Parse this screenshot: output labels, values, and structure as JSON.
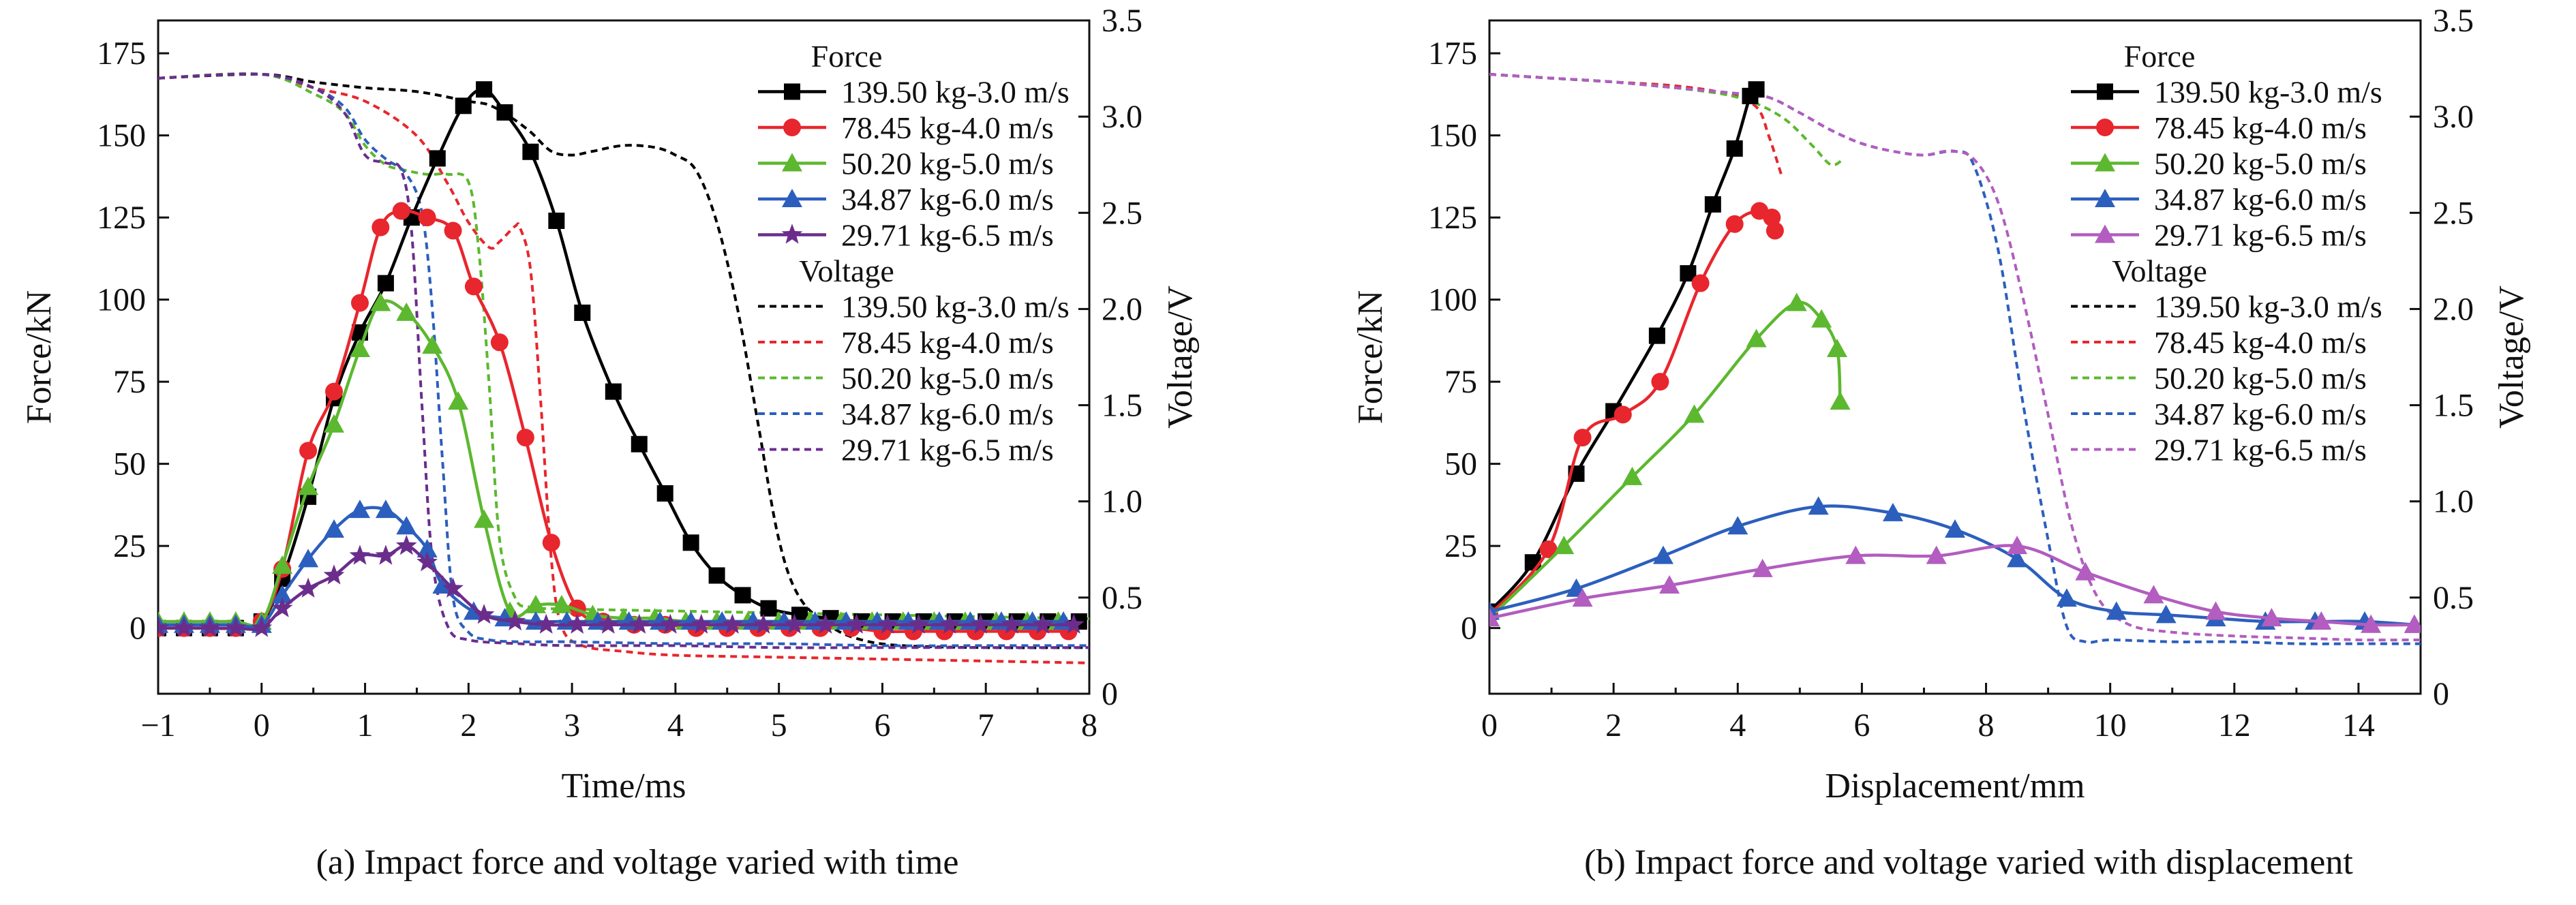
{
  "chart_data": [
    {
      "type": "line",
      "caption": "(a) Impact force and voltage varied with time",
      "xlabel": "Time/ms",
      "ylabel": "Force/kN",
      "y2label": "Voltage/V",
      "xlim": [
        -1,
        8
      ],
      "ylim": [
        -20,
        185
      ],
      "y2lim": [
        0,
        3.5
      ],
      "xticks": [
        -1,
        0,
        1,
        2,
        3,
        4,
        5,
        6,
        7,
        8
      ],
      "yticks": [
        0,
        25,
        50,
        75,
        100,
        125,
        150,
        175
      ],
      "y2ticks": [
        0,
        0.5,
        1.0,
        1.5,
        2.0,
        2.5,
        3.0,
        3.5
      ],
      "legend_force_title": "Force",
      "legend_voltage_title": "Voltage",
      "legend_position": "top-right",
      "force_series": [
        {
          "name": "139.50 kg-3.0 m/s",
          "color": "#000000",
          "marker": "square",
          "x": [
            -1,
            -0.75,
            -0.5,
            -0.25,
            0,
            0.2,
            0.45,
            0.7,
            0.95,
            1.2,
            1.45,
            1.7,
            1.95,
            2.15,
            2.35,
            2.6,
            2.85,
            3.1,
            3.4,
            3.65,
            3.9,
            4.15,
            4.4,
            4.65,
            4.9,
            5.2,
            5.5,
            5.8,
            6.1,
            6.4,
            6.7,
            7.0,
            7.3,
            7.6,
            7.9
          ],
          "y": [
            0,
            0,
            0,
            0,
            2,
            15,
            40,
            70,
            90,
            105,
            125,
            143,
            159,
            164,
            157,
            145,
            124,
            96,
            72,
            56,
            41,
            26,
            16,
            10,
            6,
            4,
            3,
            2,
            2,
            2,
            2,
            2,
            2,
            2,
            2
          ]
        },
        {
          "name": "78.45 kg-4.0 m/s",
          "color": "#e8262d",
          "marker": "circle",
          "x": [
            -1,
            -0.75,
            -0.5,
            -0.25,
            0,
            0.2,
            0.45,
            0.7,
            0.95,
            1.15,
            1.35,
            1.6,
            1.85,
            2.05,
            2.3,
            2.55,
            2.8,
            3.05,
            3.3,
            3.6,
            3.9,
            4.2,
            4.5,
            4.8,
            5.1,
            5.4,
            5.7,
            6.0,
            6.3,
            6.6,
            6.9,
            7.2,
            7.5,
            7.8
          ],
          "y": [
            0,
            0,
            0,
            0,
            2,
            18,
            54,
            72,
            99,
            122,
            127,
            125,
            121,
            104,
            87,
            58,
            26,
            6,
            2,
            1,
            1,
            0,
            0,
            0,
            0,
            0,
            0,
            -1,
            -1,
            -1,
            -1,
            -1,
            -1,
            -1
          ]
        },
        {
          "name": "50.20 kg-5.0 m/s",
          "color": "#5cb82f",
          "marker": "triangle",
          "x": [
            -1,
            -0.75,
            -0.5,
            -0.25,
            0,
            0.2,
            0.45,
            0.7,
            0.95,
            1.15,
            1.4,
            1.65,
            1.9,
            2.15,
            2.4,
            2.65,
            2.9,
            3.2,
            3.5,
            3.8,
            4.1,
            4.4,
            4.7,
            5.0,
            5.3,
            5.6,
            5.9,
            6.2,
            6.5,
            6.8,
            7.1,
            7.4,
            7.7
          ],
          "y": [
            2,
            2,
            2,
            2,
            2,
            19,
            43,
            62,
            85,
            99,
            96,
            86,
            69,
            33,
            5,
            7,
            7,
            4,
            3,
            3,
            2,
            2,
            2,
            2,
            2,
            2,
            2,
            2,
            2,
            2,
            2,
            2,
            2
          ]
        },
        {
          "name": "34.87 kg-6.0 m/s",
          "color": "#2c5fbd",
          "marker": "triangle",
          "x": [
            -1,
            -0.75,
            -0.5,
            -0.25,
            0,
            0.2,
            0.45,
            0.7,
            0.95,
            1.2,
            1.4,
            1.6,
            1.75,
            2.05,
            2.35,
            2.65,
            2.95,
            3.25,
            3.55,
            3.85,
            4.15,
            4.45,
            4.75,
            5.05,
            5.35,
            5.65,
            5.95,
            6.25,
            6.55,
            6.85,
            7.15,
            7.45,
            7.75
          ],
          "y": [
            1,
            1,
            1,
            1,
            1,
            10,
            21,
            30,
            36,
            36,
            31,
            24,
            13,
            5,
            3,
            2,
            2,
            2,
            2,
            2,
            2,
            2,
            2,
            2,
            2,
            2,
            2,
            2,
            2,
            2,
            2,
            2,
            2
          ]
        },
        {
          "name": "29.71 kg-6.5 m/s",
          "color": "#6b2d8c",
          "marker": "star",
          "x": [
            -1,
            -0.75,
            -0.5,
            -0.25,
            0,
            0.2,
            0.45,
            0.7,
            0.95,
            1.2,
            1.4,
            1.6,
            1.85,
            2.15,
            2.45,
            2.75,
            3.05,
            3.35,
            3.65,
            3.95,
            4.25,
            4.55,
            4.85,
            5.15,
            5.45,
            5.75,
            6.05,
            6.35,
            6.65,
            6.95,
            7.25,
            7.55,
            7.85
          ],
          "y": [
            0,
            0,
            0,
            0,
            0,
            6,
            12,
            16,
            22,
            22,
            25,
            20,
            12,
            4,
            2,
            1,
            1,
            1,
            1,
            1,
            1,
            1,
            1,
            1,
            1,
            1,
            1,
            1,
            1,
            1,
            1,
            1,
            1
          ]
        }
      ],
      "voltage_series": [
        {
          "name": "139.50 kg-3.0 m/s",
          "color": "#000000",
          "x": [
            -1,
            0,
            0.5,
            1.0,
            1.5,
            2.0,
            2.2,
            2.4,
            2.6,
            2.8,
            3.0,
            3.2,
            3.5,
            3.8,
            4.0,
            4.2,
            4.4,
            4.6,
            4.8,
            5.0,
            5.2,
            5.5,
            5.8,
            6.2,
            7.0,
            8.0
          ],
          "y": [
            3.2,
            3.22,
            3.18,
            3.15,
            3.13,
            3.08,
            3.06,
            3.0,
            2.92,
            2.82,
            2.8,
            2.82,
            2.85,
            2.84,
            2.8,
            2.72,
            2.45,
            2.0,
            1.4,
            0.8,
            0.5,
            0.35,
            0.28,
            0.25,
            0.24,
            0.24
          ]
        },
        {
          "name": "78.45 kg-4.0 m/s",
          "color": "#e8262d",
          "x": [
            -1,
            0,
            0.5,
            1.0,
            1.5,
            1.8,
            2.0,
            2.2,
            2.3,
            2.45,
            2.5,
            2.6,
            2.7,
            2.8,
            2.9,
            3.1,
            3.5,
            4.0,
            5.0,
            6.0,
            7.0,
            8.0
          ],
          "y": [
            3.2,
            3.22,
            3.15,
            3.08,
            2.9,
            2.65,
            2.45,
            2.32,
            2.35,
            2.43,
            2.42,
            2.2,
            1.5,
            0.7,
            0.35,
            0.25,
            0.22,
            0.2,
            0.19,
            0.18,
            0.17,
            0.16
          ]
        },
        {
          "name": "50.20 kg-5.0 m/s",
          "color": "#5cb82f",
          "x": [
            -1,
            0,
            0.5,
            0.8,
            1.0,
            1.2,
            1.4,
            1.6,
            1.8,
            2.0,
            2.1,
            2.2,
            2.3,
            2.45,
            2.6,
            3.0,
            4.0,
            5.0,
            6.0,
            7.0,
            8.0
          ],
          "y": [
            3.2,
            3.22,
            3.12,
            3.02,
            2.85,
            2.75,
            2.72,
            2.7,
            2.7,
            2.66,
            2.3,
            1.6,
            0.8,
            0.5,
            0.45,
            0.44,
            0.43,
            0.42,
            0.41,
            0.4,
            0.39
          ]
        },
        {
          "name": "34.87 kg-6.0 m/s",
          "color": "#2c5fbd",
          "x": [
            -1,
            0,
            0.5,
            0.8,
            1.0,
            1.2,
            1.4,
            1.55,
            1.65,
            1.75,
            1.85,
            2.0,
            2.2,
            2.5,
            3.0,
            4.0,
            5.0,
            6.0,
            7.0,
            8.0
          ],
          "y": [
            3.2,
            3.22,
            3.15,
            3.05,
            2.88,
            2.78,
            2.7,
            2.5,
            2.0,
            1.2,
            0.5,
            0.32,
            0.28,
            0.27,
            0.27,
            0.26,
            0.26,
            0.25,
            0.25,
            0.25
          ]
        },
        {
          "name": "29.71 kg-6.5 m/s",
          "color": "#6b2d8c",
          "x": [
            -1,
            0,
            0.5,
            0.8,
            1.0,
            1.2,
            1.35,
            1.45,
            1.55,
            1.65,
            1.8,
            2.0,
            2.5,
            3.0,
            4.0,
            5.0,
            6.0,
            7.0,
            8.0
          ],
          "y": [
            3.2,
            3.22,
            3.15,
            3.02,
            2.8,
            2.76,
            2.72,
            2.4,
            1.5,
            0.7,
            0.35,
            0.28,
            0.26,
            0.25,
            0.25,
            0.24,
            0.24,
            0.24,
            0.24
          ]
        }
      ]
    },
    {
      "type": "line",
      "caption": "(b) Impact force and voltage varied with displacement",
      "xlabel": "Displacement/mm",
      "ylabel": "Force/kN",
      "y2label": "Voltage/V",
      "xlim": [
        0,
        15
      ],
      "ylim": [
        -20,
        185
      ],
      "y2lim": [
        0,
        3.5
      ],
      "xticks": [
        0,
        2,
        4,
        6,
        8,
        10,
        12,
        14
      ],
      "yticks": [
        0,
        25,
        50,
        75,
        100,
        125,
        150,
        175
      ],
      "y2ticks": [
        0,
        0.5,
        1.0,
        1.5,
        2.0,
        2.5,
        3.0,
        3.5
      ],
      "legend_force_title": "Force",
      "legend_voltage_title": "Voltage",
      "legend_position": "top-right",
      "force_series": [
        {
          "name": "139.50 kg-3.0 m/s",
          "color": "#000000",
          "marker": "square",
          "x": [
            0,
            0.7,
            1.4,
            2.0,
            2.7,
            3.2,
            3.6,
            3.95,
            4.2,
            4.3
          ],
          "y": [
            5,
            20,
            47,
            66,
            89,
            108,
            129,
            146,
            162,
            164
          ]
        },
        {
          "name": "78.45 kg-4.0 m/s",
          "color": "#e8262d",
          "marker": "circle",
          "x": [
            0,
            0.95,
            1.5,
            2.15,
            2.75,
            3.4,
            3.95,
            4.35,
            4.55,
            4.6
          ],
          "y": [
            4,
            24,
            58,
            65,
            75,
            105,
            123,
            127,
            125,
            121
          ]
        },
        {
          "name": "50.20 kg-5.0 m/s",
          "color": "#5cb82f",
          "marker": "triangle",
          "x": [
            0,
            1.2,
            2.3,
            3.3,
            4.3,
            4.95,
            5.35,
            5.6,
            5.65
          ],
          "y": [
            3,
            25,
            46,
            65,
            88,
            99,
            94,
            85,
            69
          ]
        },
        {
          "name": "34.87 kg-6.0 m/s",
          "color": "#2c5fbd",
          "marker": "triangle",
          "x": [
            0,
            1.4,
            2.8,
            4.0,
            5.3,
            6.5,
            7.5,
            8.5,
            9.3,
            10.1,
            10.9,
            11.7,
            12.5,
            13.3,
            14.1,
            14.9
          ],
          "y": [
            5,
            12,
            22,
            31,
            37,
            35,
            30,
            21,
            9,
            5,
            4,
            3,
            2,
            2,
            2,
            1
          ]
        },
        {
          "name": "29.71 kg-6.5 m/s",
          "color": "#b25dbf",
          "marker": "triangle",
          "x": [
            0,
            1.5,
            2.9,
            4.4,
            5.9,
            7.2,
            8.5,
            9.6,
            10.7,
            11.7,
            12.6,
            13.4,
            14.2,
            14.9
          ],
          "y": [
            3,
            9,
            13,
            18,
            22,
            22,
            25,
            17,
            10,
            5,
            3,
            2,
            1,
            1
          ]
        }
      ],
      "voltage_series": [
        {
          "name": "139.50 kg-3.0 m/s",
          "color": "#000000",
          "x": [
            0,
            1,
            2,
            3,
            3.8,
            4.2
          ],
          "y": [
            3.22,
            3.2,
            3.18,
            3.15,
            3.12,
            3.08
          ]
        },
        {
          "name": "78.45 kg-4.0 m/s",
          "color": "#e8262d",
          "x": [
            0,
            1,
            2,
            3,
            3.8,
            4.3,
            4.5,
            4.7
          ],
          "y": [
            3.22,
            3.2,
            3.18,
            3.16,
            3.12,
            3.05,
            2.9,
            2.7
          ]
        },
        {
          "name": "50.20 kg-5.0 m/s",
          "color": "#5cb82f",
          "x": [
            0,
            1,
            2,
            3,
            4,
            4.7,
            5.2,
            5.5,
            5.7
          ],
          "y": [
            3.22,
            3.2,
            3.18,
            3.15,
            3.1,
            3.0,
            2.85,
            2.75,
            2.78
          ]
        },
        {
          "name": "34.87 kg-6.0 m/s",
          "color": "#2c5fbd",
          "x": [
            0,
            1,
            2,
            3,
            4,
            4.5,
            5,
            5.5,
            6,
            6.5,
            7,
            7.5,
            7.8,
            8.2,
            8.6,
            9.0,
            9.3,
            9.6,
            10,
            11,
            12,
            13,
            14,
            15
          ],
          "y": [
            3.22,
            3.2,
            3.18,
            3.15,
            3.12,
            3.1,
            3.02,
            2.93,
            2.86,
            2.82,
            2.8,
            2.82,
            2.75,
            2.3,
            1.5,
            0.8,
            0.35,
            0.27,
            0.28,
            0.27,
            0.27,
            0.26,
            0.26,
            0.26
          ]
        },
        {
          "name": "29.71 kg-6.5 m/s",
          "color": "#b25dbf",
          "x": [
            0,
            1,
            2,
            3,
            4,
            4.5,
            5,
            5.5,
            6,
            6.5,
            7,
            7.4,
            7.8,
            8.2,
            8.6,
            9.0,
            9.4,
            9.8,
            10.3,
            11,
            12,
            13,
            14,
            15
          ],
          "y": [
            3.22,
            3.2,
            3.18,
            3.15,
            3.12,
            3.1,
            3.02,
            2.93,
            2.86,
            2.82,
            2.8,
            2.82,
            2.78,
            2.55,
            2.05,
            1.45,
            0.85,
            0.5,
            0.36,
            0.32,
            0.3,
            0.29,
            0.28,
            0.28
          ]
        }
      ]
    }
  ]
}
